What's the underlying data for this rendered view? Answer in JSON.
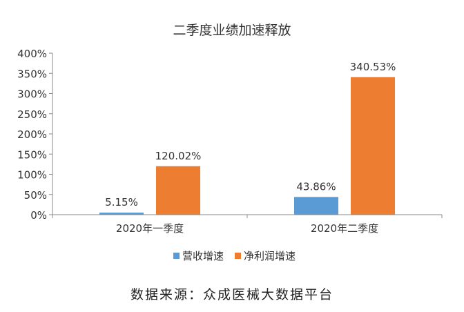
{
  "chart_data": {
    "type": "bar",
    "title": "二季度业绩加速释放",
    "categories": [
      "2020年一季度",
      "2020年二季度"
    ],
    "series": [
      {
        "name": "营收增速",
        "values": [
          5.15,
          43.86
        ],
        "labels": [
          "5.15%",
          "43.86%"
        ],
        "color": "#5b9bd5"
      },
      {
        "name": "净利润增速",
        "values": [
          120.02,
          340.53
        ],
        "labels": [
          "120.02%",
          "340.53%"
        ],
        "color": "#ed7d31"
      }
    ],
    "ylim": [
      0,
      400
    ],
    "yticks": [
      0,
      50,
      100,
      150,
      200,
      250,
      300,
      350,
      400
    ],
    "ytick_labels": [
      "0%",
      "50%",
      "100%",
      "150%",
      "200%",
      "250%",
      "300%",
      "350%",
      "400%"
    ],
    "grid": false,
    "legend_position": "bottom"
  },
  "source": "数据来源：众成医械大数据平台"
}
